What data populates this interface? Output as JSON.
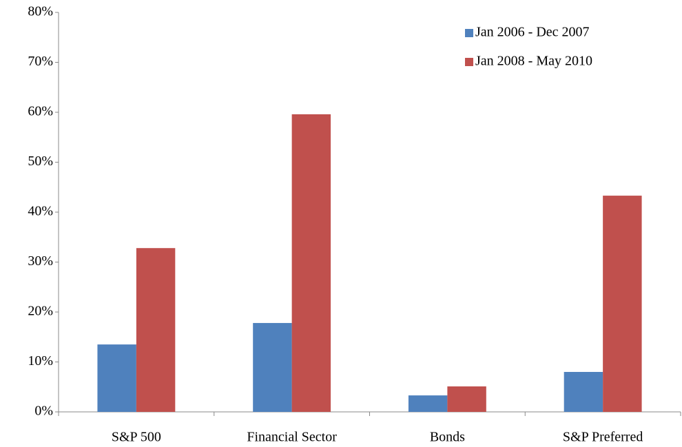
{
  "chart_data": {
    "type": "bar",
    "categories": [
      "S&P 500",
      "Financial Sector",
      "Bonds",
      "S&P Preferred"
    ],
    "series": [
      {
        "name": "Jan 2006 - Dec 2007",
        "color": "#4f81bd",
        "values": [
          13.5,
          17.8,
          3.3,
          8.0
        ]
      },
      {
        "name": "Jan 2008 - May 2010",
        "color": "#c0504d",
        "values": [
          32.8,
          59.6,
          5.1,
          43.3
        ]
      }
    ],
    "ylim": [
      0,
      80
    ],
    "yticks": [
      {
        "value": 0,
        "label": "0%"
      },
      {
        "value": 10,
        "label": "10%"
      },
      {
        "value": 20,
        "label": "20%"
      },
      {
        "value": 30,
        "label": "30%"
      },
      {
        "value": 40,
        "label": "40%"
      },
      {
        "value": 50,
        "label": "50%"
      },
      {
        "value": 60,
        "label": "60%"
      },
      {
        "value": 70,
        "label": "70%"
      },
      {
        "value": 80,
        "label": "80%"
      }
    ],
    "grid": false,
    "legend": "top-right"
  }
}
